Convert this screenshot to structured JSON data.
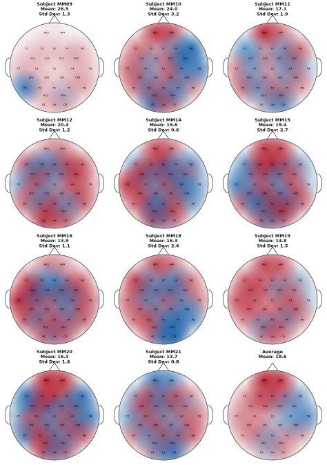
{
  "figure": {
    "panels": [
      {
        "name": "subject-mm09",
        "title": "Subject MM09",
        "mean": "Mean: 26.5",
        "std": "Std Dev: 1.3"
      },
      {
        "name": "subject-mm10",
        "title": "Subject MM10",
        "mean": "Mean: 24.0",
        "std": "Std Dev: 3.2"
      },
      {
        "name": "subject-mm11",
        "title": "Subject MM11",
        "mean": "Mean: 17.1",
        "std": "Std Dev: 1.9"
      },
      {
        "name": "subject-mm12",
        "title": "Subject MM12",
        "mean": "Mean: 20.4",
        "std": "Std Dev: 1.2"
      },
      {
        "name": "subject-mm14",
        "title": "Subject MM14",
        "mean": "Mean: 19.6",
        "std": "Std Dev: 0.6"
      },
      {
        "name": "subject-mm15",
        "title": "Subject MM15",
        "mean": "Mean: 19.4",
        "std": "Std Dev: 2.7"
      },
      {
        "name": "subject-mm16",
        "title": "Subject MM16",
        "mean": "Mean: 13.9",
        "std": "Std Dev: 1.1"
      },
      {
        "name": "subject-mm18",
        "title": "Subject MM18",
        "mean": "Mean: 16.3",
        "std": "Std Dev: 2.4"
      },
      {
        "name": "subject-mm19",
        "title": "Subject MM19",
        "mean": "Mean: 14.8",
        "std": "Std Dev: 1.5"
      },
      {
        "name": "subject-mm20",
        "title": "Subject MM20",
        "mean": "Mean: 16.3",
        "std": "Std Dev: 1.4"
      },
      {
        "name": "subject-mm21",
        "title": "Subject MM21",
        "mean": "Mean: 13.7",
        "std": "Std Dev: 0.8"
      },
      {
        "name": "average",
        "title": "Average",
        "mean": "Mean: 18.6",
        "std": ""
      }
    ]
  },
  "chart_data": {
    "type": "heatmap",
    "description_kind": "EEG scalp topographic maps, 4x3 grid",
    "colormap": "RdBu_r",
    "channels": [
      "AF3",
      "AF4",
      "F7",
      "F3",
      "Fz",
      "F4",
      "F8",
      "FC5",
      "FC1",
      "FC2",
      "FC6",
      "T7",
      "C3",
      "Cz",
      "C4",
      "T8",
      "CP5",
      "CP1",
      "CP2",
      "CP6",
      "P7",
      "P3",
      "Pz",
      "P4",
      "P8",
      "PO3",
      "PO4",
      "O1",
      "Oz",
      "O2"
    ],
    "colors": {
      "positive": "#b2182b",
      "neutral": "#f7f7f7",
      "negative": "#2166ac"
    },
    "subjects": [
      {
        "id": "MM09",
        "mean": 26.5,
        "std": 1.3,
        "weights": [
          0.1,
          0.05,
          0.1,
          0.15,
          0.1,
          0.15,
          0.2,
          0.15,
          0.1,
          0.1,
          0.2,
          0.25,
          0.1,
          0.05,
          0.1,
          0.2,
          0.2,
          0.1,
          0.1,
          0.2,
          -0.9,
          0.15,
          0.1,
          0.15,
          0.3,
          0.1,
          -0.3,
          0.2,
          0.1,
          0.3
        ]
      },
      {
        "id": "MM10",
        "mean": 24.0,
        "std": 3.2,
        "weights": [
          0.9,
          0.8,
          0.5,
          0.3,
          0.2,
          -0.6,
          -1,
          0.4,
          -0.3,
          0.5,
          -0.9,
          0.6,
          -0.4,
          0.3,
          -0.5,
          -0.8,
          0.5,
          -0.3,
          0.6,
          -0.5,
          0.5,
          -0.6,
          0.3,
          -0.4,
          0.4,
          0.6,
          -0.7,
          -0.8,
          0.4,
          0.3
        ]
      },
      {
        "id": "MM11",
        "mean": 17.1,
        "std": 1.9,
        "weights": [
          1,
          0.6,
          -0.6,
          -0.2,
          0.3,
          -0.5,
          0.5,
          -0.5,
          0.3,
          -0.4,
          0.5,
          0.5,
          -0.3,
          0.2,
          -0.5,
          -0.3,
          -0.4,
          0.3,
          -0.3,
          0.4,
          0.6,
          -0.5,
          0.4,
          -0.3,
          0.3,
          -0.3,
          0.5,
          0.2,
          -0.4,
          -0.6
        ]
      },
      {
        "id": "MM12",
        "mean": 20.4,
        "std": 1.2,
        "weights": [
          0.4,
          0.5,
          0.7,
          -0.7,
          -0.6,
          0.7,
          0.6,
          -0.6,
          0.5,
          -0.4,
          0.6,
          -0.5,
          0.6,
          -0.3,
          0.5,
          0.4,
          0.4,
          -0.5,
          0.3,
          0.5,
          0.6,
          -0.6,
          0.6,
          -0.5,
          0.6,
          0.5,
          -0.4,
          0.8,
          0.3,
          0.6
        ]
      },
      {
        "id": "MM14",
        "mean": 19.6,
        "std": 0.6,
        "weights": [
          0.8,
          0.6,
          -0.5,
          0.6,
          0.9,
          -0.5,
          -0.7,
          0.9,
          -0.5,
          -0.7,
          0.5,
          0.9,
          -0.4,
          0.6,
          -0.8,
          -0.5,
          0.6,
          -0.5,
          0.5,
          -0.6,
          0.5,
          0.7,
          -0.7,
          0.4,
          -0.5,
          -0.8,
          0.6,
          0.7,
          -0.4,
          0.4
        ]
      },
      {
        "id": "MM15",
        "mean": 19.4,
        "std": 2.7,
        "weights": [
          0.9,
          0.8,
          -0.6,
          0.8,
          0.9,
          0.7,
          -0.5,
          -0.6,
          0.6,
          -0.5,
          0.4,
          -0.8,
          0.3,
          -0.4,
          0.5,
          -0.3,
          -0.7,
          0.8,
          -0.6,
          0.6,
          0.6,
          -0.8,
          0.7,
          -0.7,
          0.5,
          -0.6,
          0.9,
          0.6,
          -0.5,
          0.3
        ]
      },
      {
        "id": "MM16",
        "mean": 13.9,
        "std": 1.1,
        "weights": [
          0.5,
          0.4,
          0.6,
          -0.5,
          -0.6,
          0.4,
          0.5,
          1,
          -0.7,
          -0.8,
          0.7,
          1,
          -0.6,
          0.5,
          -0.6,
          0.6,
          0.6,
          0.4,
          -0.5,
          0.5,
          0.7,
          -0.6,
          0.5,
          -0.5,
          0.6,
          0.4,
          0.5,
          0.6,
          -0.4,
          0.5
        ]
      },
      {
        "id": "MM18",
        "mean": 16.3,
        "std": 2.4,
        "weights": [
          0.8,
          0.6,
          0.8,
          -0.5,
          0.4,
          -0.7,
          0.5,
          0.6,
          -0.6,
          -0.7,
          0.4,
          0.6,
          -0.5,
          0.4,
          -0.5,
          0.5,
          0.4,
          -0.5,
          0.5,
          -0.6,
          0.5,
          0.6,
          -0.5,
          -0.8,
          -0.6,
          0.4,
          -0.9,
          0.5,
          -0.7,
          -1
        ]
      },
      {
        "id": "MM19",
        "mean": 14.8,
        "std": 1.5,
        "weights": [
          0.8,
          0.7,
          0.6,
          0.5,
          0.4,
          0.4,
          -0.4,
          0.6,
          0.3,
          -0.5,
          0.3,
          0.7,
          0.4,
          0.3,
          0.5,
          -0.3,
          0.5,
          0.3,
          0.4,
          0.5,
          0.4,
          0.3,
          0.4,
          -0.5,
          0.3,
          -0.6,
          0.4,
          0.3,
          0.4,
          0.3
        ]
      },
      {
        "id": "MM20",
        "mean": 16.3,
        "std": 1.4,
        "weights": [
          1,
          0.9,
          -0.9,
          0.8,
          0.7,
          0.6,
          -0.9,
          -0.8,
          0.7,
          -0.5,
          -0.7,
          -0.5,
          0.5,
          -0.5,
          0.6,
          -0.8,
          0.6,
          -0.6,
          0.5,
          -0.7,
          -0.8,
          0.6,
          -0.5,
          0.5,
          0.6,
          0.7,
          -0.6,
          0.6,
          -0.5,
          0.5
        ]
      },
      {
        "id": "MM21",
        "mean": 13.7,
        "std": 0.8,
        "weights": [
          -0.9,
          -0.7,
          -0.5,
          0.7,
          -0.6,
          0.6,
          0.4,
          0.6,
          -0.5,
          0.5,
          -0.4,
          -0.5,
          0.5,
          -0.4,
          0.4,
          0.5,
          -0.5,
          0.6,
          -0.4,
          0.4,
          0.5,
          -0.4,
          0.5,
          -0.6,
          0.6,
          -0.5,
          0.5,
          0.4,
          -0.5,
          -0.8
        ]
      },
      {
        "id": "Average",
        "mean": 18.6,
        "std": null,
        "weights": [
          1,
          0.9,
          0.3,
          0.6,
          0.6,
          0.5,
          -0.5,
          0.3,
          0.3,
          -0.3,
          -0.4,
          0.4,
          0.2,
          0.2,
          -0.3,
          -0.7,
          0.3,
          0.2,
          -0.2,
          -0.5,
          0.3,
          0.4,
          -0.3,
          0.2,
          0.3,
          -0.3,
          0.3,
          0.2,
          -0.2,
          0.3
        ]
      }
    ]
  }
}
